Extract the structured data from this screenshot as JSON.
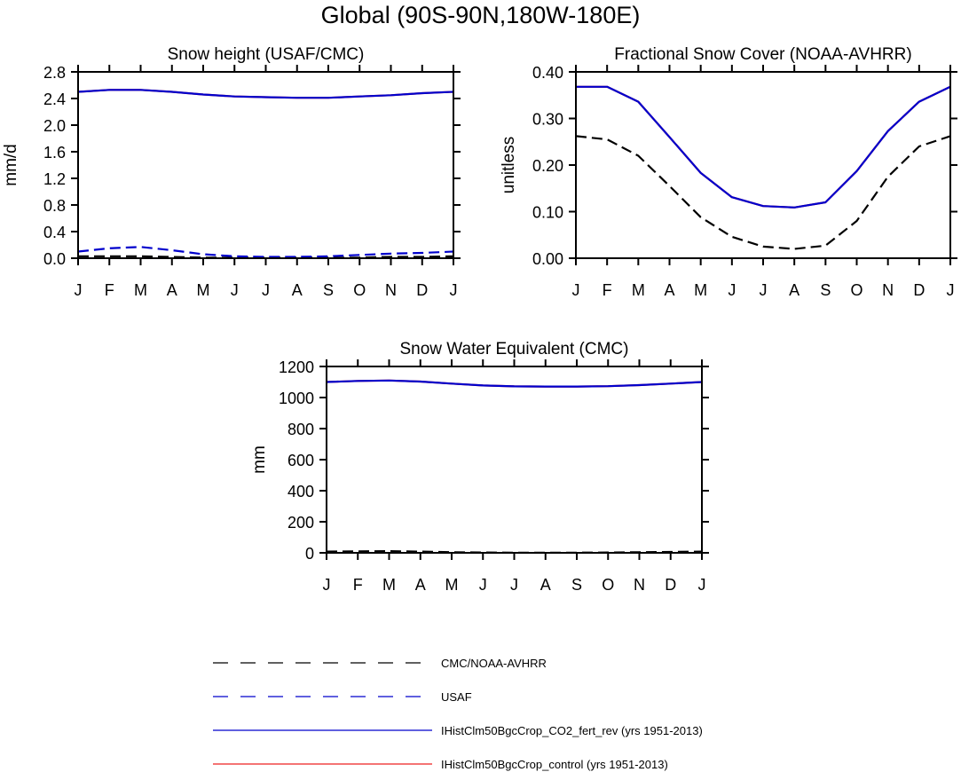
{
  "figure": {
    "title": "Global (90S-90N,180W-180E)"
  },
  "legend": [
    {
      "label": "CMC/NOAA-AVHRR",
      "color": "#000000",
      "dash": "dashed"
    },
    {
      "label": "USAF",
      "color": "#0000cc",
      "dash": "dashed"
    },
    {
      "label": "IHistClm50BgcCrop_CO2_fert_rev (yrs 1951-2013)",
      "color": "#0000cc",
      "dash": "solid"
    },
    {
      "label": "IHistClm50BgcCrop_control (yrs 1951-2013)",
      "color": "#ee2222",
      "dash": "solid"
    }
  ],
  "chart_data": [
    {
      "type": "line",
      "title": "Snow height (USAF/CMC)",
      "xlabel": "",
      "ylabel": "mm/d",
      "categories": [
        "J",
        "F",
        "M",
        "A",
        "M",
        "J",
        "J",
        "A",
        "S",
        "O",
        "N",
        "D",
        "J"
      ],
      "ylim": [
        0,
        2.8
      ],
      "yticks": [
        "0.0",
        "0.4",
        "0.8",
        "1.2",
        "1.6",
        "2.0",
        "2.4",
        "2.8"
      ],
      "ytick_values": [
        0,
        0.4,
        0.8,
        1.2,
        1.6,
        2.0,
        2.4,
        2.8
      ],
      "series": [
        {
          "name": "CMC/NOAA-AVHRR",
          "color": "#000000",
          "dash": "dashed",
          "values": [
            0.03,
            0.03,
            0.03,
            0.02,
            0.01,
            0.01,
            0.01,
            0.01,
            0.01,
            0.01,
            0.02,
            0.02,
            0.03
          ]
        },
        {
          "name": "USAF",
          "color": "#0000cc",
          "dash": "dashed",
          "values": [
            0.1,
            0.15,
            0.17,
            0.12,
            0.06,
            0.03,
            0.02,
            0.02,
            0.03,
            0.05,
            0.07,
            0.08,
            0.1
          ]
        },
        {
          "name": "IHistClm50BgcCrop_control (yrs 1951-2013)",
          "color": "#ee2222",
          "dash": "solid",
          "values": [
            2.5,
            2.53,
            2.53,
            2.5,
            2.46,
            2.43,
            2.42,
            2.41,
            2.41,
            2.43,
            2.45,
            2.48,
            2.5
          ]
        },
        {
          "name": "IHistClm50BgcCrop_CO2_fert_rev (yrs 1951-2013)",
          "color": "#0000cc",
          "dash": "solid",
          "values": [
            2.5,
            2.53,
            2.53,
            2.5,
            2.46,
            2.43,
            2.42,
            2.41,
            2.41,
            2.43,
            2.45,
            2.48,
            2.5
          ]
        }
      ]
    },
    {
      "type": "line",
      "title": "Fractional Snow Cover (NOAA-AVHRR)",
      "xlabel": "",
      "ylabel": "unitless",
      "categories": [
        "J",
        "F",
        "M",
        "A",
        "M",
        "J",
        "J",
        "A",
        "S",
        "O",
        "N",
        "D",
        "J"
      ],
      "ylim": [
        0,
        0.4
      ],
      "yticks": [
        "0.00",
        "0.10",
        "0.20",
        "0.30",
        "0.40"
      ],
      "ytick_values": [
        0,
        0.1,
        0.2,
        0.3,
        0.4
      ],
      "series": [
        {
          "name": "CMC/NOAA-AVHRR",
          "color": "#000000",
          "dash": "dashed",
          "values": [
            0.262,
            0.255,
            0.22,
            0.155,
            0.088,
            0.046,
            0.025,
            0.02,
            0.027,
            0.08,
            0.175,
            0.24,
            0.262
          ]
        },
        {
          "name": "IHistClm50BgcCrop_control (yrs 1951-2013)",
          "color": "#ee2222",
          "dash": "solid",
          "values": [
            0.368,
            0.368,
            0.336,
            0.26,
            0.183,
            0.131,
            0.112,
            0.109,
            0.12,
            0.187,
            0.273,
            0.336,
            0.368
          ]
        },
        {
          "name": "IHistClm50BgcCrop_CO2_fert_rev (yrs 1951-2013)",
          "color": "#0000cc",
          "dash": "solid",
          "values": [
            0.368,
            0.368,
            0.336,
            0.26,
            0.183,
            0.131,
            0.112,
            0.109,
            0.12,
            0.187,
            0.273,
            0.336,
            0.368
          ]
        }
      ]
    },
    {
      "type": "line",
      "title": "Snow Water Equivalent (CMC)",
      "xlabel": "",
      "ylabel": "mm",
      "categories": [
        "J",
        "F",
        "M",
        "A",
        "M",
        "J",
        "J",
        "A",
        "S",
        "O",
        "N",
        "D",
        "J"
      ],
      "ylim": [
        0,
        1200
      ],
      "yticks": [
        "0",
        "200",
        "400",
        "600",
        "800",
        "1000",
        "1200"
      ],
      "ytick_values": [
        0,
        200,
        400,
        600,
        800,
        1000,
        1200
      ],
      "series": [
        {
          "name": "CMC/NOAA-AVHRR",
          "color": "#000000",
          "dash": "dashed",
          "values": [
            8,
            10,
            11,
            8,
            4,
            2,
            1,
            1,
            1,
            2,
            4,
            6,
            8
          ]
        },
        {
          "name": "IHistClm50BgcCrop_control (yrs 1951-2013)",
          "color": "#ee2222",
          "dash": "solid",
          "values": [
            1100,
            1107,
            1110,
            1103,
            1090,
            1078,
            1072,
            1071,
            1071,
            1073,
            1080,
            1090,
            1100
          ]
        },
        {
          "name": "IHistClm50BgcCrop_CO2_fert_rev (yrs 1951-2013)",
          "color": "#0000cc",
          "dash": "solid",
          "values": [
            1100,
            1107,
            1110,
            1103,
            1090,
            1078,
            1072,
            1071,
            1071,
            1073,
            1080,
            1090,
            1100
          ]
        }
      ]
    }
  ]
}
